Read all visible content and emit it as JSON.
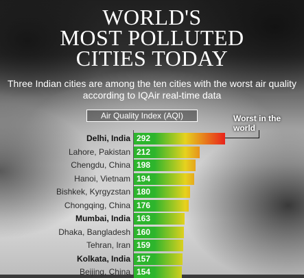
{
  "title_lines": [
    "World's",
    "Most Polluted",
    "Cities Today"
  ],
  "subtitle": "Three Indian cities are among the ten cities with the worst air quality according to IQAir real-time data",
  "annotation": "Worst in the world",
  "chart_data": {
    "type": "bar",
    "orientation": "horizontal",
    "title": "World's Most Polluted Cities Today",
    "xlabel": "Air Quality Index (AQI)",
    "ylabel": "",
    "categories": [
      "Delhi, India",
      "Lahore, Pakistan",
      "Chengdu, China",
      "Hanoi, Vietnam",
      "Bishkek, Kyrgyzstan",
      "Chongqing, China",
      "Mumbai, India",
      "Dhaka, Bangladesh",
      "Tehran, Iran",
      "Kolkata, India",
      "Beijing, China"
    ],
    "values": [
      292,
      212,
      198,
      194,
      180,
      176,
      163,
      160,
      159,
      157,
      154
    ],
    "highlighted": [
      "Delhi, India",
      "Mumbai, India",
      "Kolkata, India"
    ],
    "xlim": [
      0,
      300
    ],
    "colors": {
      "low": "#2db52d",
      "mid": "#e6d21e",
      "high": "#e8221b"
    }
  }
}
